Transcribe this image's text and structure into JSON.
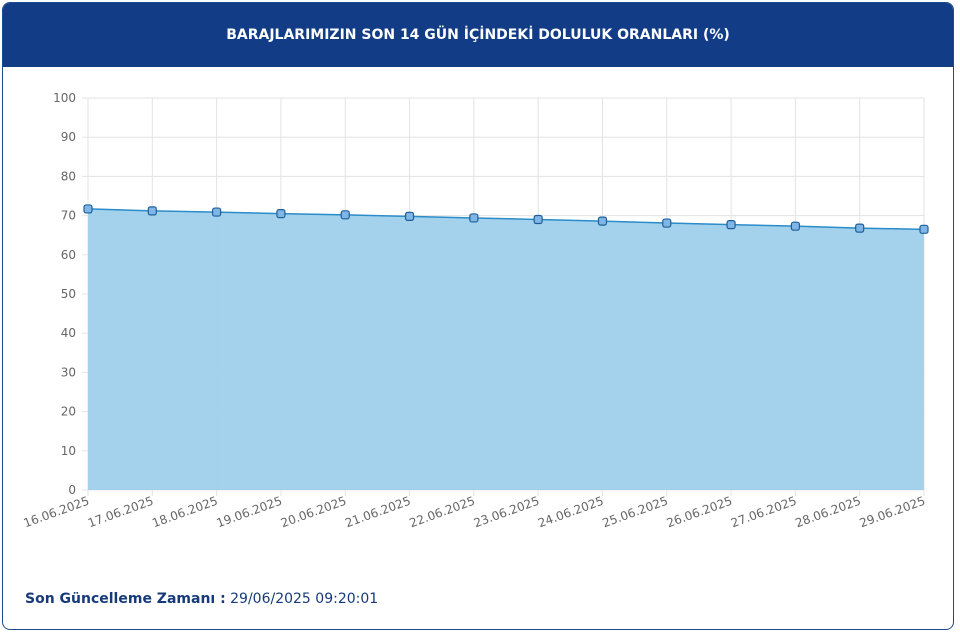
{
  "chart_data": {
    "type": "area",
    "title": "BARAJLARIMIZIN SON 14 GÜN İÇİNDEKİ DOLULUK ORANLARI (%)",
    "x": [
      "16.06.2025",
      "17.06.2025",
      "18.06.2025",
      "19.06.2025",
      "20.06.2025",
      "21.06.2025",
      "22.06.2025",
      "23.06.2025",
      "24.06.2025",
      "25.06.2025",
      "26.06.2025",
      "27.06.2025",
      "28.06.2025",
      "29.06.2025"
    ],
    "values": [
      71.7,
      71.2,
      70.9,
      70.5,
      70.2,
      69.8,
      69.4,
      69.0,
      68.6,
      68.1,
      67.7,
      67.3,
      66.8,
      66.5
    ],
    "color": "#2a8cc8",
    "fill": "#9fd0ec",
    "ylim": [
      0,
      100
    ],
    "yticks": [
      0,
      10,
      20,
      30,
      40,
      50,
      60,
      70,
      80,
      90,
      100
    ],
    "grid": true
  },
  "footer": {
    "label": "Son Güncelleme Zamanı :",
    "value": "29/06/2025 09:20:01"
  }
}
